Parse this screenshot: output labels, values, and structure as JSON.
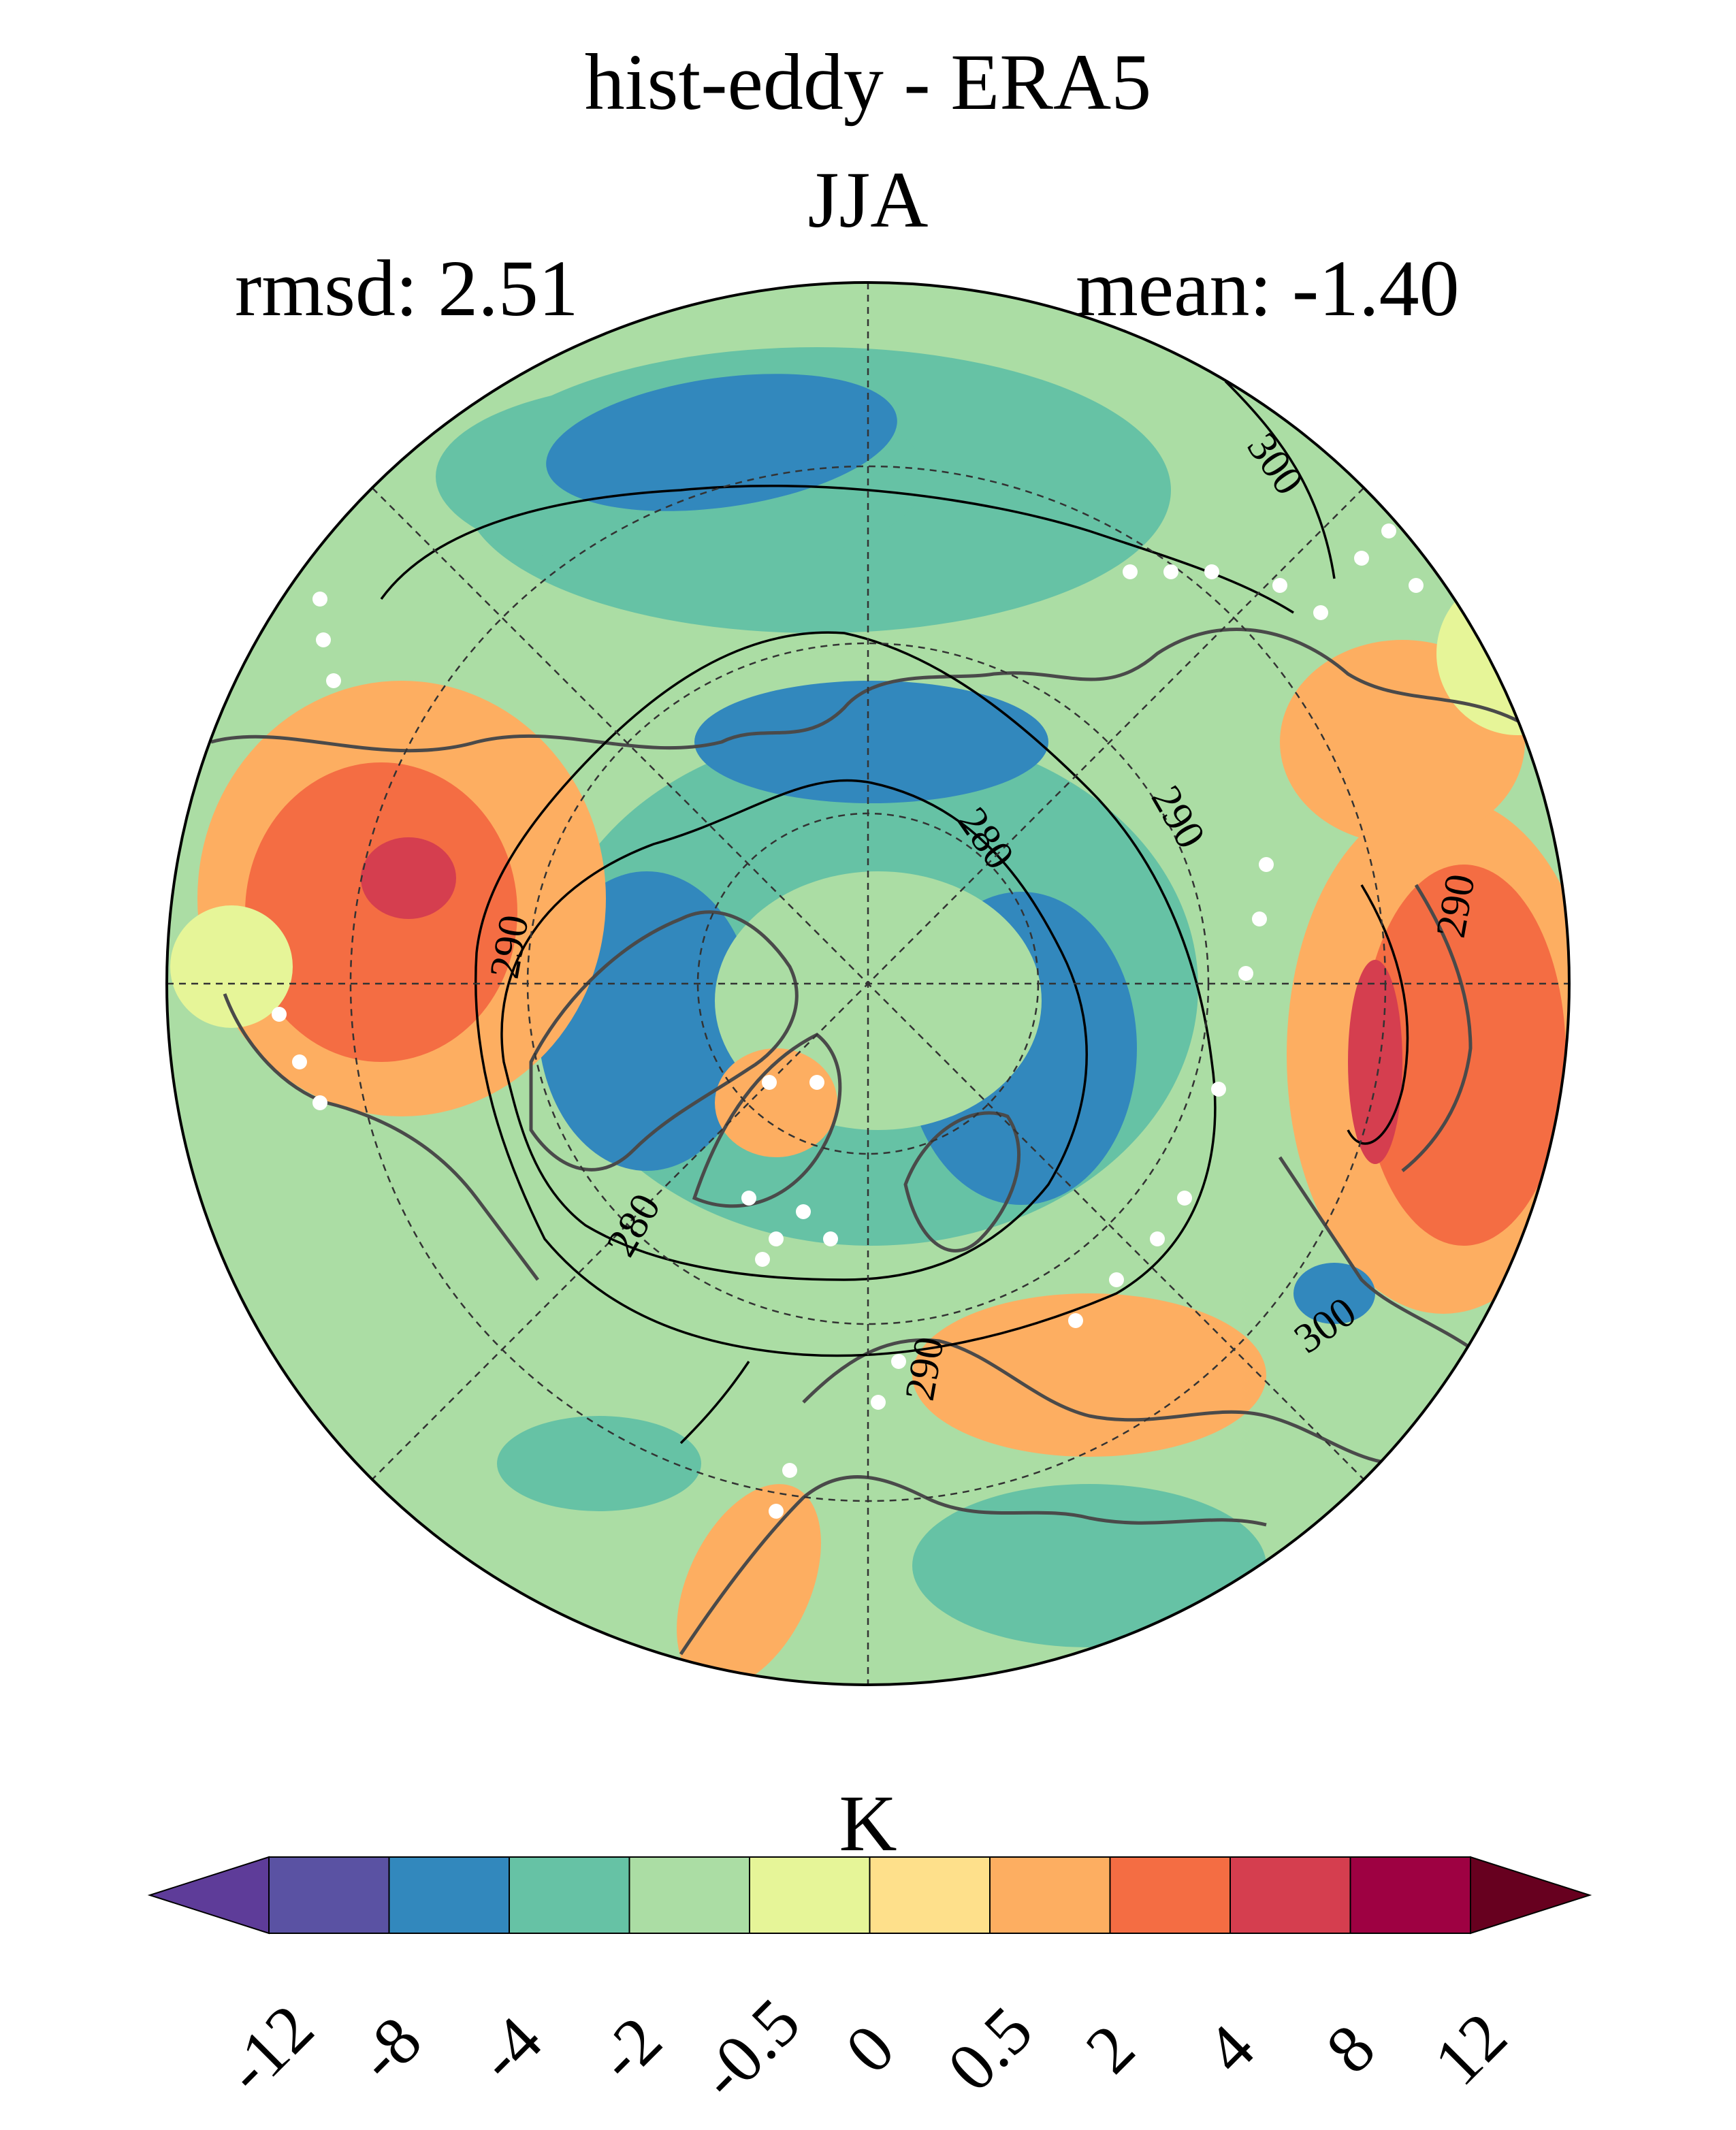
{
  "title": "hist-eddy - ERA5",
  "season": "JJA",
  "stats": {
    "rmsd": "rmsd: 2.51",
    "mean": "mean: -1.40"
  },
  "contour_labels": [
    "300",
    "290",
    "280",
    "290",
    "290",
    "280",
    "290",
    "300"
  ],
  "colorbar": {
    "unit": "K",
    "ticks": [
      "-12",
      "-8",
      "-4",
      "-2",
      "-0.5",
      "0",
      "0.5",
      "2",
      "4",
      "8",
      "12"
    ],
    "colors": [
      "#5e3c99",
      "#5a52a3",
      "#3288bd",
      "#66c2a5",
      "#abdda4",
      "#e6f598",
      "#fee08b",
      "#fdae61",
      "#f46d43",
      "#d53e4f",
      "#9e0142",
      "#67001f"
    ]
  },
  "chart_data": {
    "type": "heatmap",
    "title": "hist-eddy - ERA5",
    "subtitle": "JJA",
    "projection": "north polar stereographic",
    "unit": "K",
    "rmsd": 2.51,
    "mean": -1.4,
    "levels": [
      -12,
      -8,
      -4,
      -2,
      -0.5,
      0,
      0.5,
      2,
      4,
      8,
      12
    ],
    "contour_levels": [
      280,
      290,
      300
    ]
  }
}
